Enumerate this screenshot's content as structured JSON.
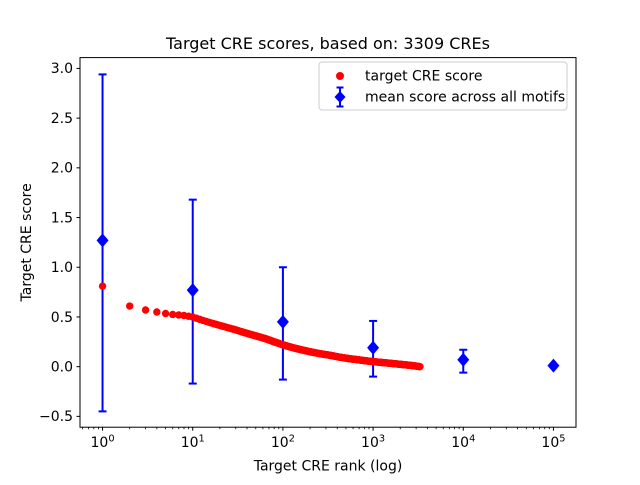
{
  "chart_data": {
    "type": "scatter",
    "title": "Target CRE scores, based on: 3309 CREs",
    "xlabel": "Target CRE rank (log)",
    "ylabel": "Target CRE score",
    "x_scale": "log",
    "xlim": [
      0.5623,
      177828
    ],
    "ylim": [
      -0.609,
      3.109
    ],
    "grid": false,
    "legend_position": "upper right",
    "x_ticks": [
      {
        "value": 1,
        "base": "10",
        "exp": "0"
      },
      {
        "value": 10,
        "base": "10",
        "exp": "1"
      },
      {
        "value": 100,
        "base": "10",
        "exp": "2"
      },
      {
        "value": 1000,
        "base": "10",
        "exp": "3"
      },
      {
        "value": 10000,
        "base": "10",
        "exp": "4"
      },
      {
        "value": 100000,
        "base": "10",
        "exp": "5"
      }
    ],
    "y_ticks": [
      {
        "value": -0.5,
        "label": "−0.5"
      },
      {
        "value": 0.0,
        "label": "0.0"
      },
      {
        "value": 0.5,
        "label": "0.5"
      },
      {
        "value": 1.0,
        "label": "1.0"
      },
      {
        "value": 1.5,
        "label": "1.5"
      },
      {
        "value": 2.0,
        "label": "2.0"
      },
      {
        "value": 2.5,
        "label": "2.5"
      },
      {
        "value": 3.0,
        "label": "3.0"
      }
    ],
    "series": [
      {
        "name": "target CRE score",
        "type": "scatter",
        "marker": "circle",
        "color": "#ff0000",
        "n_points": 3309,
        "x_meaning": "rank",
        "anchor_points": [
          [
            1,
            0.81
          ],
          [
            2,
            0.61
          ],
          [
            3,
            0.57
          ],
          [
            4,
            0.55
          ],
          [
            5,
            0.535
          ],
          [
            6,
            0.525
          ],
          [
            8,
            0.515
          ],
          [
            10,
            0.5
          ],
          [
            13,
            0.465
          ],
          [
            16,
            0.44
          ],
          [
            20,
            0.415
          ],
          [
            25,
            0.39
          ],
          [
            30,
            0.37
          ],
          [
            40,
            0.335
          ],
          [
            50,
            0.31
          ],
          [
            65,
            0.28
          ],
          [
            80,
            0.25
          ],
          [
            100,
            0.22
          ],
          [
            130,
            0.19
          ],
          [
            160,
            0.17
          ],
          [
            200,
            0.15
          ],
          [
            260,
            0.13
          ],
          [
            330,
            0.115
          ],
          [
            430,
            0.095
          ],
          [
            550,
            0.08
          ],
          [
            700,
            0.068
          ],
          [
            900,
            0.055
          ],
          [
            1100,
            0.047
          ],
          [
            1400,
            0.038
          ],
          [
            1800,
            0.028
          ],
          [
            2300,
            0.018
          ],
          [
            2800,
            0.01
          ],
          [
            3309,
            0.0
          ]
        ]
      },
      {
        "name": "mean score across all motifs",
        "type": "errorbar",
        "marker": "diamond",
        "color": "#0000ff",
        "x": [
          1,
          10,
          100,
          1000,
          10000,
          100000
        ],
        "y": [
          1.27,
          0.77,
          0.45,
          0.19,
          0.07,
          0.01
        ],
        "err_low": [
          -0.45,
          -0.17,
          -0.13,
          -0.1,
          -0.06,
          0.01
        ],
        "err_high": [
          2.94,
          1.68,
          1.0,
          0.46,
          0.17,
          0.01
        ]
      }
    ]
  }
}
